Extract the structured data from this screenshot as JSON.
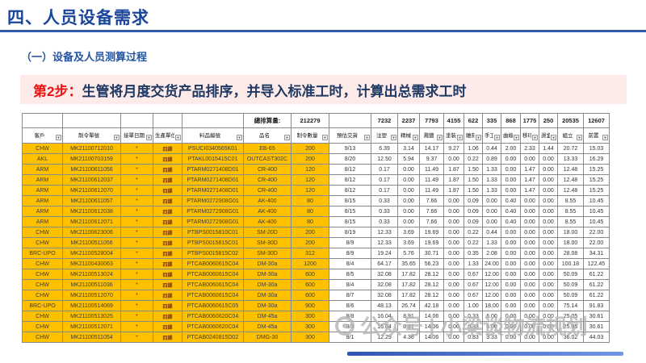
{
  "slide": {
    "title": "四、人员设备需求",
    "subtitle": "（一）设备及人员测算过程",
    "step_label": "第2步：",
    "step_text": "生管将月度交货产品排序，并导入标准工时，计算出总需求工时"
  },
  "table": {
    "volume_label": "總排算量:",
    "volume_value": "212279",
    "process_totals": [
      "7232",
      "2237",
      "7793",
      "4155",
      "622",
      "335",
      "868",
      "1775",
      "250",
      "20535",
      "12607"
    ],
    "columns": [
      "客戶",
      "制令單號",
      "接單日期",
      "生產單位",
      "料品編號",
      "品名",
      "制令數量",
      "預估交貨",
      "注塑",
      "精械",
      "濺鍍",
      "塗裝",
      "雕刻",
      "手工",
      "曲線",
      "移印",
      "燙金",
      "組立",
      "前置"
    ],
    "rows": [
      [
        "CHW",
        "MK21100712010",
        "*",
        "四課",
        "PSUCI0340565K01",
        "EB-65",
        "200",
        "9/13",
        "6.39",
        "3.14",
        "14.17",
        "9.27",
        "1.06",
        "0.44",
        "2.00",
        "2.33",
        "1.44",
        "20.72",
        "15.03"
      ],
      [
        "AKL",
        "MK21100703159",
        "*",
        "四課",
        "PTAKL0015415C01",
        "OUTCAST302C",
        "200",
        "8/20",
        "12.50",
        "5.94",
        "9.37",
        "0.00",
        "0.22",
        "0.89",
        "0.00",
        "0.00",
        "0.00",
        "13.33",
        "16.29"
      ],
      [
        "ARM",
        "MK21100611056",
        "*",
        "四課",
        "PTARM0271408D01",
        "CR-400",
        "120",
        "8/12",
        "0.17",
        "0.00",
        "11.49",
        "1.87",
        "1.50",
        "1.33",
        "0.00",
        "1.47",
        "0.00",
        "12.48",
        "15.25"
      ],
      [
        "ARM",
        "MK21100612037",
        "*",
        "四課",
        "PTARM0271408D01",
        "CR-400",
        "120",
        "8/12",
        "0.17",
        "0.00",
        "11.49",
        "1.87",
        "1.50",
        "1.33",
        "0.00",
        "1.47",
        "0.00",
        "12.48",
        "15.25"
      ],
      [
        "ARM",
        "MK21100612070",
        "*",
        "四課",
        "PTARM0271408D01",
        "CR-400",
        "120",
        "8/12",
        "0.17",
        "0.00",
        "11.49",
        "1.87",
        "1.50",
        "1.33",
        "0.00",
        "1.47",
        "0.00",
        "12.48",
        "15.25"
      ],
      [
        "ARM",
        "MK21100611057",
        "*",
        "四課",
        "PTARM0272908G01",
        "AK-400",
        "80",
        "8/15",
        "0.33",
        "0.00",
        "7.66",
        "0.00",
        "0.09",
        "0.00",
        "0.40",
        "0.00",
        "0.00",
        "8.55",
        "10.45"
      ],
      [
        "ARM",
        "MK21100612038",
        "*",
        "四課",
        "PTARM0272908G01",
        "AK-400",
        "80",
        "8/15",
        "0.33",
        "0.00",
        "7.66",
        "0.00",
        "0.09",
        "0.00",
        "0.40",
        "0.00",
        "0.00",
        "8.55",
        "10.45"
      ],
      [
        "ARM",
        "MK21100612071",
        "*",
        "四課",
        "PTARM0272908G01",
        "AK-400",
        "80",
        "8/15",
        "0.33",
        "0.00",
        "7.66",
        "0.00",
        "0.09",
        "0.00",
        "0.40",
        "0.00",
        "0.00",
        "8.55",
        "10.45"
      ],
      [
        "CHW",
        "MK21100623006",
        "*",
        "四課",
        "PTBPS0015810C01",
        "SM-20D",
        "200",
        "8/19",
        "12.33",
        "3.69",
        "19.69",
        "0.00",
        "0.22",
        "0.44",
        "0.00",
        "0.00",
        "0.00",
        "18.00",
        "22.00"
      ],
      [
        "CHW",
        "MK21100511056",
        "*",
        "四課",
        "PTBPS0015815C01",
        "SM-30D",
        "200",
        "8/9",
        "12.33",
        "3.69",
        "19.69",
        "0.00",
        "0.22",
        "1.33",
        "0.00",
        "0.00",
        "0.00",
        "18.00",
        "22.00"
      ],
      [
        "BRC-UPO",
        "MK21100528004",
        "*",
        "四課",
        "PTBPS0015815C02",
        "SM-30D",
        "312",
        "8/9",
        "19.24",
        "5.76",
        "30.71",
        "0.00",
        "0.35",
        "2.08",
        "0.00",
        "0.00",
        "0.00",
        "28.08",
        "34.31"
      ],
      [
        "CHW",
        "MK21100430063",
        "*",
        "四課",
        "PTCAB0060615C04",
        "DM-30a",
        "1200",
        "8/4",
        "64.17",
        "35.65",
        "56.23",
        "0.00",
        "1.33",
        "24.00",
        "0.00",
        "0.00",
        "0.00",
        "100.18",
        "122.45"
      ],
      [
        "CHW",
        "MK21100513024",
        "*",
        "四課",
        "PTCAB0060615C04",
        "DM-30a",
        "600",
        "8/5",
        "32.08",
        "17.82",
        "28.12",
        "0.00",
        "0.67",
        "12.00",
        "0.00",
        "0.00",
        "0.00",
        "50.09",
        "61.22"
      ],
      [
        "CHW",
        "MK21100511036",
        "*",
        "四課",
        "PTCAB0060615C04",
        "DM-30a",
        "600",
        "8/4",
        "32.08",
        "17.82",
        "28.12",
        "0.00",
        "0.67",
        "12.00",
        "0.00",
        "0.00",
        "0.00",
        "50.09",
        "61.22"
      ],
      [
        "CHW",
        "MK21100512070",
        "*",
        "四課",
        "PTCAB0060615C04",
        "DM-30a",
        "600",
        "8/7",
        "32.08",
        "17.82",
        "28.12",
        "0.00",
        "0.67",
        "12.00",
        "0.00",
        "0.00",
        "0.00",
        "50.09",
        "61.22"
      ],
      [
        "BRC-UPO",
        "MK21100514069",
        "*",
        "四課",
        "PTCAB0060615C05",
        "DM-30a",
        "900",
        "8/6",
        "48.13",
        "26.74",
        "42.18",
        "0.00",
        "1.00",
        "18.00",
        "0.00",
        "0.00",
        "0.00",
        "75.14",
        "91.83"
      ],
      [
        "CHW",
        "MK21100513025",
        "*",
        "四課",
        "PTCAB0060620C04",
        "DM-45a",
        "300",
        "8/8",
        "16.04",
        "8.91",
        "14.06",
        "0.00",
        "0.33",
        "6.00",
        "0.00",
        "0.00",
        "0.00",
        "25.05",
        "30.61"
      ],
      [
        "CHW",
        "MK21100512071",
        "*",
        "四課",
        "PTCAB0060620C04",
        "DM-45a",
        "300",
        "8/8",
        "16.04",
        "8.91",
        "14.06",
        "0.00",
        "0.33",
        "6.00",
        "0.00",
        "0.00",
        "0.00",
        "25.05",
        "30.61"
      ],
      [
        "CHW",
        "MK21100511054",
        "*",
        "四課",
        "PTCAB0240815D02",
        "DMG-30",
        "300",
        "8/1",
        "12.29",
        "4.36",
        "14.06",
        "0.00",
        "0.83",
        "3.33",
        "0.00",
        "0.00",
        "0.00",
        "36.02",
        "44.03"
      ]
    ]
  },
  "watermark": {
    "text": "公众号 | 小梁谈物流规划"
  },
  "colors": {
    "accent_yellow": "#FFC000",
    "title_blue": "#1B459A",
    "banner_pink": "#FCEBE9",
    "step_red": "#EE1111",
    "banner_text_navy": "#1F3864",
    "scrollbar_blue": "#2F55B4"
  }
}
